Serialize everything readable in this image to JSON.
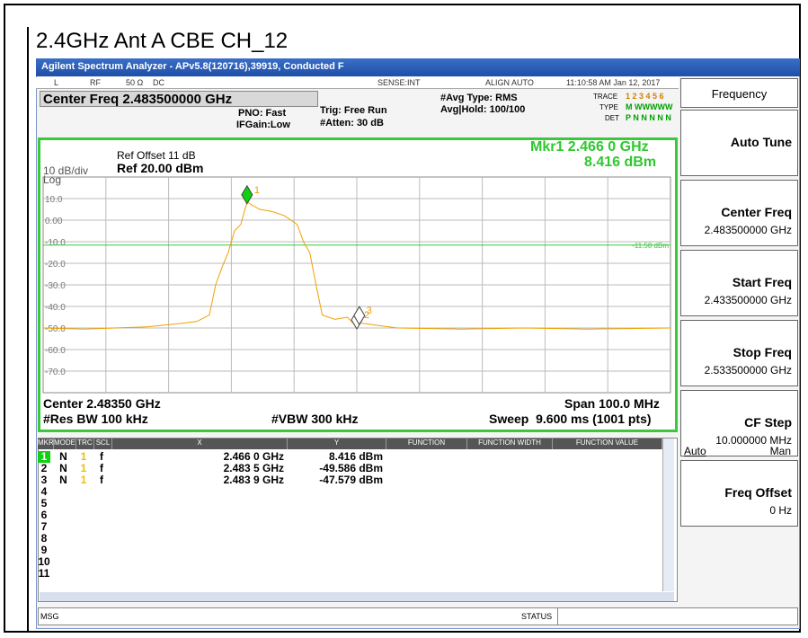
{
  "page_title": "2.4GHz Ant A CBE CH_12",
  "window_title": "Agilent Spectrum Analyzer - APv5.8(120716),39919, Conducted F",
  "status_bar": [
    "L",
    "RF",
    "50 Ω",
    "DC",
    "SENSE:INT",
    "ALIGN AUTO",
    "11:10:58 AM Jan 12, 2017"
  ],
  "center_freq": "Center Freq 2.483500000 GHz",
  "settings": {
    "pno": "PNO: Fast",
    "ifgain": "IFGain:Low",
    "trig": "Trig: Free Run",
    "atten": "#Atten: 30 dB",
    "avg_type": "#Avg Type: RMS",
    "avg_hold": "Avg|Hold: 100/100",
    "trace_label": "TRACE",
    "trace": "1 2 3 4 5 6",
    "type_label": "TYPE",
    "type": "M WWWWW",
    "det_label": "DET",
    "det": "P N N N N N"
  },
  "plot": {
    "ref_offset": "Ref Offset 11 dB",
    "ref_level": "Ref 20.00 dBm",
    "scale": "10 dB/div",
    "log": "Log",
    "marker_readout": "Mkr1 2.466 0 GHz",
    "marker_value": "8.416 dBm",
    "center": "Center 2.48350 GHz",
    "span": "Span 100.0 MHz",
    "rbw": "#Res BW 100 kHz",
    "vbw": "#VBW 300 kHz",
    "sweep": "Sweep  9.600 ms (1001 pts)",
    "xlim": [
      2.4335,
      2.5335
    ],
    "ylim": [
      -80,
      20
    ],
    "yticks": [
      {
        "value": 10,
        "label": "10.0"
      },
      {
        "value": 0,
        "label": "0.00"
      },
      {
        "value": -10,
        "label": "-10.0"
      },
      {
        "value": -20,
        "label": "-20.0"
      },
      {
        "value": -30,
        "label": "-30.0"
      },
      {
        "value": -40,
        "label": "-40.0"
      },
      {
        "value": -50,
        "label": "-50.0"
      },
      {
        "value": -60,
        "label": "-60.0"
      },
      {
        "value": -70,
        "label": "-70.0"
      }
    ],
    "trace": {
      "color": "#f0a000",
      "x": [
        2.4335,
        2.44,
        2.45,
        2.455,
        2.458,
        2.46,
        2.461,
        2.462,
        2.463,
        2.464,
        2.465,
        2.466,
        2.468,
        2.47,
        2.472,
        2.474,
        2.475,
        2.476,
        2.477,
        2.478,
        2.48,
        2.482,
        2.4835,
        2.4839,
        2.486,
        2.49,
        2.5,
        2.51,
        2.52,
        2.5335
      ],
      "values": [
        -50,
        -50.5,
        -49.5,
        -48,
        -47,
        -44,
        -30,
        -22,
        -15,
        -5,
        -2,
        8.4,
        5,
        4,
        2,
        -2,
        -10,
        -15,
        -30,
        -44,
        -46,
        -45,
        -49.6,
        -47.6,
        -48.5,
        -50,
        -50.5,
        -50,
        -50.5,
        -50
      ]
    },
    "display_line": {
      "value": -11.58,
      "label": "-11.58 dBm"
    },
    "markers": [
      {
        "label": "1",
        "x": 2.466,
        "y": 8.416
      },
      {
        "label": "2",
        "x": 2.4835,
        "y": -49.586
      },
      {
        "label": "3",
        "x": 2.4839,
        "y": -47.579
      }
    ]
  },
  "marker_table": {
    "headers": [
      "MKR",
      "MODE",
      "TRC",
      "SCL",
      "X",
      "Y",
      "FUNCTION",
      "FUNCTION WIDTH",
      "FUNCTION VALUE"
    ],
    "rows": [
      [
        "1",
        "N",
        "1",
        "f",
        "2.466 0 GHz",
        "8.416 dBm"
      ],
      [
        "2",
        "N",
        "1",
        "f",
        "2.483 5 GHz",
        "-49.586 dBm"
      ],
      [
        "3",
        "N",
        "1",
        "f",
        "2.483 9 GHz",
        "-47.579 dBm"
      ],
      [
        "4"
      ],
      [
        "5"
      ],
      [
        "6"
      ],
      [
        "7"
      ],
      [
        "8"
      ],
      [
        "9"
      ],
      [
        "10"
      ],
      [
        "11"
      ]
    ]
  },
  "softkeys": [
    {
      "label": "Frequency"
    },
    {
      "label": "Auto Tune"
    },
    {
      "label": "Center Freq",
      "value": "2.483500000 GHz"
    },
    {
      "label": "Start Freq",
      "value": "2.433500000 GHz"
    },
    {
      "label": "Stop Freq",
      "value": "2.533500000 GHz"
    },
    {
      "label": "CF Step",
      "value": "10.000000 MHz",
      "options": [
        "Auto",
        "Man"
      ]
    },
    {
      "label": "Freq Offset",
      "value": "0 Hz"
    }
  ],
  "msg": "MSG",
  "status": "STATUS"
}
